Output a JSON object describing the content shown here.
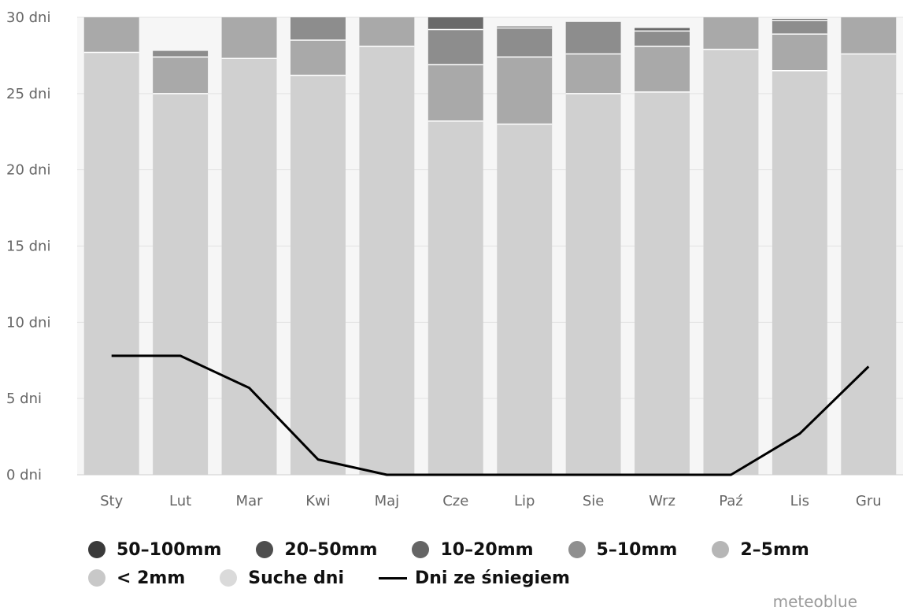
{
  "chart_data": {
    "type": "bar",
    "stacked": true,
    "categories": [
      "Sty",
      "Lut",
      "Mar",
      "Kwi",
      "Maj",
      "Cze",
      "Lip",
      "Sie",
      "Wrz",
      "Paź",
      "Lis",
      "Gru"
    ],
    "y_ticks": [
      "0 dni",
      "5 dni",
      "10 dni",
      "15 dni",
      "20 dni",
      "25 dni",
      "30 dni"
    ],
    "ylim": [
      0,
      30
    ],
    "grid": true,
    "legend_position": "bottom",
    "series": [
      {
        "name": "Suche dni",
        "color": "#d0d0d0",
        "values": [
          27.7,
          25.0,
          27.3,
          26.2,
          28.1,
          23.2,
          23.0,
          25.0,
          25.1,
          27.9,
          26.5,
          27.6
        ]
      },
      {
        "name": "< 2mm",
        "color": "#b8b8b8",
        "values": [
          0,
          0,
          0,
          0,
          0,
          0,
          0,
          0,
          0,
          0,
          0,
          0
        ]
      },
      {
        "name": "2-5mm",
        "color": "#a9a9a9",
        "values": [
          2.3,
          2.4,
          2.7,
          2.3,
          1.9,
          3.7,
          4.4,
          2.6,
          3.0,
          2.1,
          2.4,
          2.4
        ]
      },
      {
        "name": "5-10mm",
        "color": "#8d8d8d",
        "values": [
          0,
          0.4,
          0,
          1.5,
          0,
          2.3,
          1.9,
          2.1,
          1.0,
          0,
          0.9,
          0
        ]
      },
      {
        "name": "10-20mm",
        "color": "#6a6a6a",
        "values": [
          0,
          0,
          0,
          0,
          0,
          0.8,
          0.1,
          0,
          0.2,
          0,
          0.1,
          0
        ]
      },
      {
        "name": "20-50mm",
        "color": "#4e4e4e",
        "values": [
          0,
          0,
          0,
          0,
          0,
          0,
          0,
          0,
          0,
          0,
          0,
          0
        ]
      },
      {
        "name": "50-100mm",
        "color": "#2f2f2f",
        "values": [
          0,
          0,
          0,
          0,
          0,
          0,
          0,
          0,
          0,
          0,
          0,
          0
        ]
      }
    ],
    "line_series": {
      "name": "Dni ze śniegiem",
      "color": "#000000",
      "values": [
        7.8,
        7.8,
        5.7,
        1.0,
        0,
        0,
        0,
        0,
        0,
        0,
        2.7,
        7.1
      ]
    }
  },
  "legend": {
    "row1": [
      {
        "label": "50–100mm",
        "color": "#3a3a3a"
      },
      {
        "label": "20–50mm",
        "color": "#4e4e4e"
      },
      {
        "label": "10–20mm",
        "color": "#656565"
      },
      {
        "label": "5–10mm",
        "color": "#8f8f8f"
      },
      {
        "label": "2–5mm",
        "color": "#b6b6b6"
      }
    ],
    "row2": [
      {
        "label": "< 2mm",
        "color": "#c8c8c8"
      },
      {
        "label": "Suche dni",
        "color": "#dadada"
      }
    ],
    "line_label": "Dni ze śniegiem"
  },
  "credit": "meteoblue"
}
